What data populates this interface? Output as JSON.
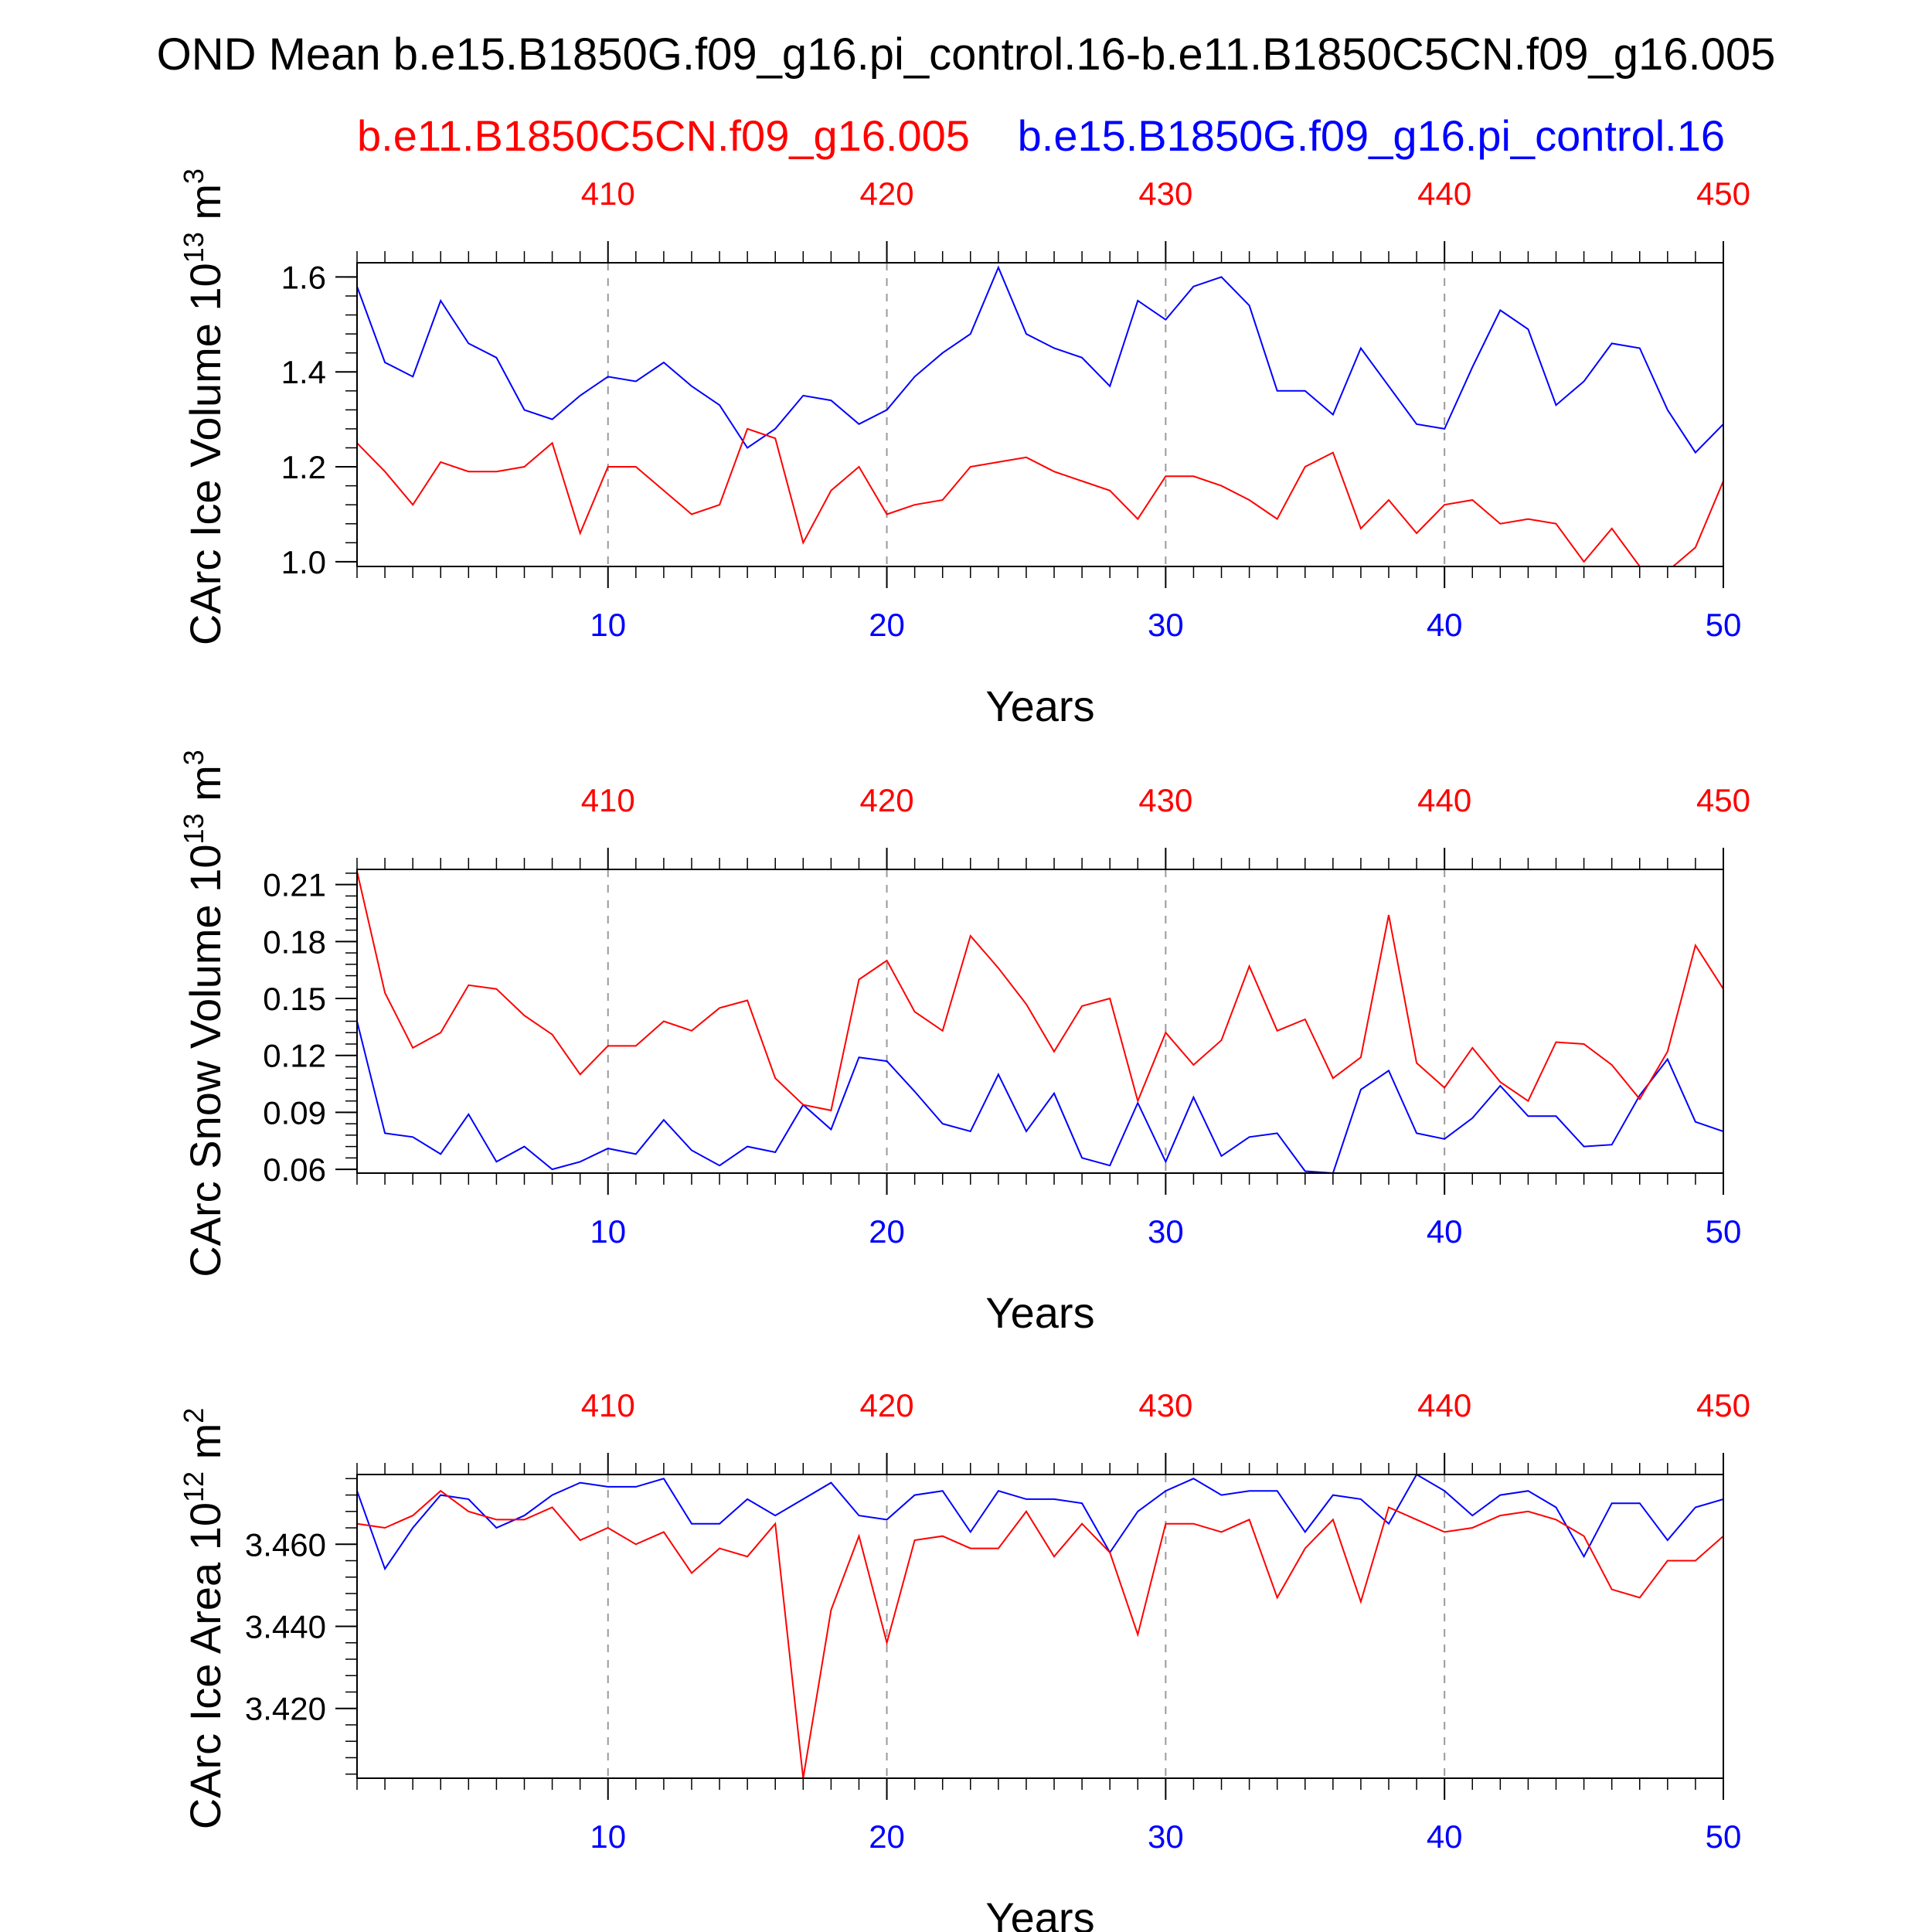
{
  "title": "OND Mean b.e15.B1850G.f09_g16.pi_control.16-b.e11.B1850C5CN.f09_g16.005",
  "legend": {
    "red_label": "b.e11.B1850C5CN.f09_g16.005",
    "blue_label": "b.e15.B1850G.f09_g16.pi_control.16",
    "red_color": "#ff0000",
    "blue_color": "#0000ff"
  },
  "chart_data": [
    {
      "type": "line",
      "ylabel": "CArc Ice Volume 10",
      "ylabel_exp": "13",
      "ylabel_unit": " m",
      "ylabel_unit_exp": "3",
      "xlabel": "Years",
      "ylim": [
        0.99,
        1.63
      ],
      "yticks": [
        1.0,
        1.2,
        1.4,
        1.6
      ],
      "ytick_labels": [
        "1.0",
        "1.2",
        "1.4",
        "1.6"
      ],
      "ydecimals": 1,
      "yminor_step": 0.04,
      "xlim": [
        1,
        50
      ],
      "x_bottom_ticks": [
        10,
        20,
        30,
        40,
        50
      ],
      "x_top_ticks": [
        410,
        420,
        430,
        440,
        450
      ],
      "grid": "dashed vertical at major x ticks",
      "x": [
        1,
        2,
        3,
        4,
        5,
        6,
        7,
        8,
        9,
        10,
        11,
        12,
        13,
        14,
        15,
        16,
        17,
        18,
        19,
        20,
        21,
        22,
        23,
        24,
        25,
        26,
        27,
        28,
        29,
        30,
        31,
        32,
        33,
        34,
        35,
        36,
        37,
        38,
        39,
        40,
        41,
        42,
        43,
        44,
        45,
        46,
        47,
        48,
        49,
        50
      ],
      "series": [
        {
          "color": "#0000ff",
          "values": [
            1.58,
            1.42,
            1.39,
            1.55,
            1.46,
            1.43,
            1.32,
            1.3,
            1.35,
            1.39,
            1.38,
            1.42,
            1.37,
            1.33,
            1.24,
            1.28,
            1.35,
            1.34,
            1.29,
            1.32,
            1.39,
            1.44,
            1.48,
            1.62,
            1.48,
            1.45,
            1.43,
            1.37,
            1.55,
            1.51,
            1.58,
            1.6,
            1.54,
            1.36,
            1.36,
            1.31,
            1.45,
            1.37,
            1.29,
            1.28,
            1.41,
            1.53,
            1.49,
            1.33,
            1.38,
            1.46,
            1.45,
            1.32,
            1.23,
            1.29
          ]
        },
        {
          "color": "#ff0000",
          "values": [
            1.25,
            1.19,
            1.12,
            1.21,
            1.19,
            1.19,
            1.2,
            1.25,
            1.06,
            1.2,
            1.2,
            1.15,
            1.1,
            1.12,
            1.28,
            1.26,
            1.04,
            1.15,
            1.2,
            1.1,
            1.12,
            1.13,
            1.2,
            1.21,
            1.22,
            1.19,
            1.17,
            1.15,
            1.09,
            1.18,
            1.18,
            1.16,
            1.13,
            1.09,
            1.2,
            1.23,
            1.07,
            1.13,
            1.06,
            1.12,
            1.13,
            1.08,
            1.09,
            1.08,
            1.0,
            1.07,
            0.99,
            0.98,
            1.03,
            1.17
          ]
        }
      ]
    },
    {
      "type": "line",
      "ylabel": "CArc Snow Volume 10",
      "ylabel_exp": "13",
      "ylabel_unit": " m",
      "ylabel_unit_exp": "3",
      "xlabel": "Years",
      "ylim": [
        0.058,
        0.218
      ],
      "yticks": [
        0.06,
        0.09,
        0.12,
        0.15,
        0.18,
        0.21
      ],
      "ytick_labels": [
        "0.06",
        "0.09",
        "0.12",
        "0.15",
        "0.18",
        "0.21"
      ],
      "ydecimals": 2,
      "yminor_step": 0.006,
      "xlim": [
        1,
        50
      ],
      "x_bottom_ticks": [
        10,
        20,
        30,
        40,
        50
      ],
      "x_top_ticks": [
        410,
        420,
        430,
        440,
        450
      ],
      "grid": "dashed vertical at major x ticks",
      "x": [
        1,
        2,
        3,
        4,
        5,
        6,
        7,
        8,
        9,
        10,
        11,
        12,
        13,
        14,
        15,
        16,
        17,
        18,
        19,
        20,
        21,
        22,
        23,
        24,
        25,
        26,
        27,
        28,
        29,
        30,
        31,
        32,
        33,
        34,
        35,
        36,
        37,
        38,
        39,
        40,
        41,
        42,
        43,
        44,
        45,
        46,
        47,
        48,
        49,
        50
      ],
      "series": [
        {
          "color": "#0000ff",
          "values": [
            0.138,
            0.079,
            0.077,
            0.068,
            0.089,
            0.064,
            0.072,
            0.06,
            0.064,
            0.071,
            0.068,
            0.086,
            0.07,
            0.062,
            0.072,
            0.069,
            0.094,
            0.081,
            0.119,
            0.117,
            0.101,
            0.084,
            0.08,
            0.11,
            0.08,
            0.1,
            0.066,
            0.062,
            0.095,
            0.064,
            0.098,
            0.067,
            0.077,
            0.079,
            0.059,
            0.058,
            0.102,
            0.112,
            0.079,
            0.076,
            0.087,
            0.104,
            0.088,
            0.088,
            0.072,
            0.073,
            0.099,
            0.118,
            0.085,
            0.08
          ]
        },
        {
          "color": "#ff0000",
          "values": [
            0.217,
            0.153,
            0.124,
            0.132,
            0.157,
            0.155,
            0.141,
            0.131,
            0.11,
            0.125,
            0.125,
            0.138,
            0.133,
            0.145,
            0.149,
            0.108,
            0.094,
            0.091,
            0.16,
            0.17,
            0.143,
            0.133,
            0.183,
            0.166,
            0.147,
            0.122,
            0.146,
            0.15,
            0.096,
            0.132,
            0.115,
            0.128,
            0.167,
            0.133,
            0.139,
            0.108,
            0.119,
            0.194,
            0.116,
            0.103,
            0.124,
            0.106,
            0.096,
            0.127,
            0.126,
            0.115,
            0.097,
            0.122,
            0.178,
            0.155
          ]
        }
      ]
    },
    {
      "type": "line",
      "ylabel": "CArc Ice Area 10",
      "ylabel_exp": "12",
      "ylabel_unit": " m",
      "ylabel_unit_exp": "2",
      "xlabel": "Years",
      "ylim": [
        3.403,
        3.477
      ],
      "yticks": [
        3.42,
        3.44,
        3.46
      ],
      "ytick_labels": [
        "3.420",
        "3.440",
        "3.460"
      ],
      "ydecimals": 3,
      "yminor_step": 0.004,
      "xlim": [
        1,
        50
      ],
      "x_bottom_ticks": [
        10,
        20,
        30,
        40,
        50
      ],
      "x_top_ticks": [
        410,
        420,
        430,
        440,
        450
      ],
      "grid": "dashed vertical at major x ticks",
      "x": [
        1,
        2,
        3,
        4,
        5,
        6,
        7,
        8,
        9,
        10,
        11,
        12,
        13,
        14,
        15,
        16,
        17,
        18,
        19,
        20,
        21,
        22,
        23,
        24,
        25,
        26,
        27,
        28,
        29,
        30,
        31,
        32,
        33,
        34,
        35,
        36,
        37,
        38,
        39,
        40,
        41,
        42,
        43,
        44,
        45,
        46,
        47,
        48,
        49,
        50
      ],
      "series": [
        {
          "color": "#0000ff",
          "values": [
            3.473,
            3.454,
            3.464,
            3.472,
            3.471,
            3.464,
            3.467,
            3.472,
            3.475,
            3.474,
            3.474,
            3.476,
            3.465,
            3.465,
            3.471,
            3.467,
            3.471,
            3.475,
            3.467,
            3.466,
            3.472,
            3.473,
            3.463,
            3.473,
            3.471,
            3.471,
            3.47,
            3.458,
            3.468,
            3.473,
            3.476,
            3.472,
            3.473,
            3.473,
            3.463,
            3.472,
            3.471,
            3.465,
            3.477,
            3.473,
            3.467,
            3.472,
            3.473,
            3.469,
            3.457,
            3.47,
            3.47,
            3.461,
            3.469,
            3.471
          ]
        },
        {
          "color": "#ff0000",
          "values": [
            3.465,
            3.464,
            3.467,
            3.473,
            3.468,
            3.466,
            3.466,
            3.469,
            3.461,
            3.464,
            3.46,
            3.463,
            3.453,
            3.459,
            3.457,
            3.465,
            3.403,
            3.444,
            3.462,
            3.436,
            3.461,
            3.462,
            3.459,
            3.459,
            3.468,
            3.457,
            3.465,
            3.458,
            3.438,
            3.465,
            3.465,
            3.463,
            3.466,
            3.447,
            3.459,
            3.466,
            3.446,
            3.469,
            3.466,
            3.463,
            3.464,
            3.467,
            3.468,
            3.466,
            3.462,
            3.449,
            3.447,
            3.456,
            3.456,
            3.462
          ]
        }
      ]
    }
  ]
}
